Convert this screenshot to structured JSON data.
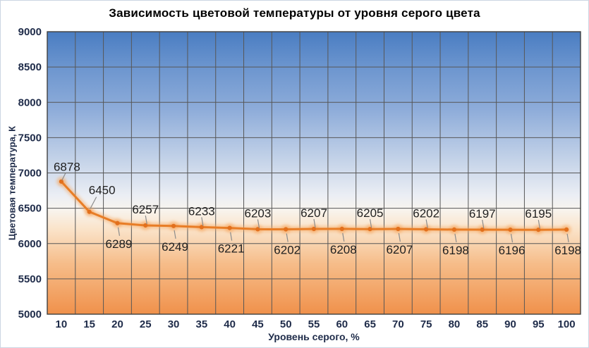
{
  "window": {
    "background": "#ffffff",
    "frame_border_color": "#ccd5e2"
  },
  "chart_data": {
    "type": "line",
    "title": "Зависимость цветовой температуры от уровня серого цвета",
    "xlabel": "Уровень серого, %",
    "ylabel": "Цветовая температура, К",
    "x": [
      10,
      15,
      20,
      25,
      30,
      35,
      40,
      45,
      50,
      55,
      60,
      65,
      70,
      75,
      80,
      85,
      90,
      95,
      100
    ],
    "values": [
      6878,
      6450,
      6289,
      6257,
      6249,
      6233,
      6221,
      6203,
      6202,
      6207,
      6208,
      6205,
      6207,
      6202,
      6198,
      6197,
      6196,
      6195,
      6198
    ],
    "ylim": [
      5000,
      9000
    ],
    "ytick_step": 500,
    "yticks": [
      9000,
      8500,
      8000,
      7500,
      7000,
      6500,
      6000,
      5500,
      5000
    ],
    "grid": true,
    "legend": "none",
    "data_labels": {
      "show": true,
      "positions": [
        "above-right",
        "above-right-far",
        "below",
        "above",
        "below",
        "above",
        "below",
        "above",
        "below",
        "above",
        "below",
        "above",
        "below",
        "above",
        "below",
        "above",
        "below",
        "above",
        "below"
      ]
    },
    "colors": {
      "line": "#e87d26",
      "marker": "#e2701d",
      "glow": "#f6a963",
      "grid": "#575757",
      "plot_border": "#404040",
      "leader": "#8c8c8c",
      "label_text": "#1f1f1f",
      "axis_text": "#1e2b49",
      "title_text": "#000000",
      "plot_bg_gradient": [
        [
          "0%",
          "#4a7dc2"
        ],
        [
          "13%",
          "#6d96cf"
        ],
        [
          "28%",
          "#8fadda"
        ],
        [
          "45%",
          "#c3d2e8"
        ],
        [
          "58%",
          "#ebeef4"
        ],
        [
          "63%",
          "#f8f4ee"
        ],
        [
          "70%",
          "#fae3c9"
        ],
        [
          "82%",
          "#f6bd8a"
        ],
        [
          "100%",
          "#f0914b"
        ]
      ]
    }
  }
}
